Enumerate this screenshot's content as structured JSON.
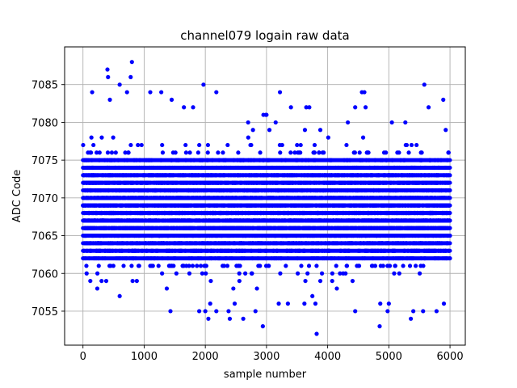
{
  "chart_data": {
    "type": "scatter",
    "title": "channel079 logain raw data",
    "xlabel": "sample number",
    "ylabel": "ADC Code",
    "xlim": [
      -300,
      6250
    ],
    "ylim": [
      7050.5,
      7090
    ],
    "x_ticks": [
      0,
      1000,
      2000,
      3000,
      4000,
      5000,
      6000
    ],
    "y_ticks": [
      7055,
      7060,
      7065,
      7070,
      7075,
      7080,
      7085
    ],
    "grid": true,
    "marker_color": "#0000ff",
    "n_samples": 6000,
    "core_band": [
      7060,
      7077
    ],
    "outliers": [
      {
        "x": 400,
        "y": 7087
      },
      {
        "x": 410,
        "y": 7086
      },
      {
        "x": 800,
        "y": 7088
      },
      {
        "x": 780,
        "y": 7086
      },
      {
        "x": 600,
        "y": 7085
      },
      {
        "x": 150,
        "y": 7084
      },
      {
        "x": 720,
        "y": 7084
      },
      {
        "x": 1100,
        "y": 7084
      },
      {
        "x": 1280,
        "y": 7084
      },
      {
        "x": 1970,
        "y": 7085
      },
      {
        "x": 2180,
        "y": 7084
      },
      {
        "x": 3220,
        "y": 7084
      },
      {
        "x": 4560,
        "y": 7084
      },
      {
        "x": 4600,
        "y": 7084
      },
      {
        "x": 5580,
        "y": 7085
      },
      {
        "x": 5890,
        "y": 7083
      },
      {
        "x": 1450,
        "y": 7083
      },
      {
        "x": 440,
        "y": 7083
      },
      {
        "x": 1650,
        "y": 7082
      },
      {
        "x": 3400,
        "y": 7082
      },
      {
        "x": 3650,
        "y": 7082
      },
      {
        "x": 3700,
        "y": 7082
      },
      {
        "x": 4450,
        "y": 7082
      },
      {
        "x": 4620,
        "y": 7082
      },
      {
        "x": 5650,
        "y": 7082
      },
      {
        "x": 1800,
        "y": 7082
      },
      {
        "x": 2950,
        "y": 7081
      },
      {
        "x": 2990,
        "y": 7081
      },
      {
        "x": 3000,
        "y": 7081
      },
      {
        "x": 2700,
        "y": 7080
      },
      {
        "x": 3150,
        "y": 7080
      },
      {
        "x": 4330,
        "y": 7080
      },
      {
        "x": 5050,
        "y": 7080
      },
      {
        "x": 5270,
        "y": 7080
      },
      {
        "x": 5930,
        "y": 7079
      },
      {
        "x": 3880,
        "y": 7079
      },
      {
        "x": 600,
        "y": 7057
      },
      {
        "x": 60,
        "y": 7060
      },
      {
        "x": 120,
        "y": 7059
      },
      {
        "x": 380,
        "y": 7059
      },
      {
        "x": 880,
        "y": 7059
      },
      {
        "x": 1370,
        "y": 7058
      },
      {
        "x": 1430,
        "y": 7055
      },
      {
        "x": 1900,
        "y": 7055
      },
      {
        "x": 2000,
        "y": 7055
      },
      {
        "x": 2050,
        "y": 7054
      },
      {
        "x": 2080,
        "y": 7056
      },
      {
        "x": 2180,
        "y": 7055
      },
      {
        "x": 2380,
        "y": 7055
      },
      {
        "x": 2400,
        "y": 7054
      },
      {
        "x": 2480,
        "y": 7056
      },
      {
        "x": 2620,
        "y": 7054
      },
      {
        "x": 2820,
        "y": 7055
      },
      {
        "x": 2940,
        "y": 7053
      },
      {
        "x": 3200,
        "y": 7056
      },
      {
        "x": 3350,
        "y": 7056
      },
      {
        "x": 3620,
        "y": 7056
      },
      {
        "x": 3750,
        "y": 7057
      },
      {
        "x": 3800,
        "y": 7056
      },
      {
        "x": 3820,
        "y": 7052
      },
      {
        "x": 3880,
        "y": 7059
      },
      {
        "x": 4150,
        "y": 7058
      },
      {
        "x": 4450,
        "y": 7055
      },
      {
        "x": 4850,
        "y": 7053
      },
      {
        "x": 4860,
        "y": 7056
      },
      {
        "x": 4980,
        "y": 7055
      },
      {
        "x": 5000,
        "y": 7056
      },
      {
        "x": 5360,
        "y": 7054
      },
      {
        "x": 5400,
        "y": 7055
      },
      {
        "x": 5560,
        "y": 7055
      },
      {
        "x": 5780,
        "y": 7055
      },
      {
        "x": 5900,
        "y": 7056
      }
    ]
  }
}
